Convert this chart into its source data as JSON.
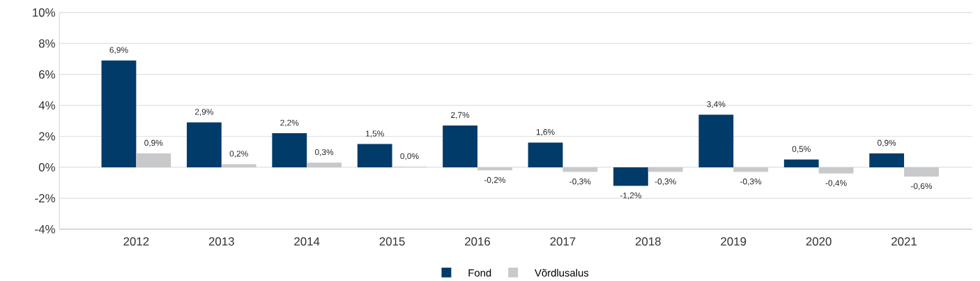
{
  "chart_data": {
    "type": "bar",
    "categories": [
      "2012",
      "2013",
      "2014",
      "2015",
      "2016",
      "2017",
      "2018",
      "2019",
      "2020",
      "2021"
    ],
    "series": [
      {
        "name": "Fond",
        "color": "#013b6a",
        "values": [
          6.9,
          2.9,
          2.2,
          1.5,
          2.7,
          1.6,
          -1.2,
          3.4,
          0.5,
          0.9
        ],
        "value_labels": [
          "6,9%",
          "2,9%",
          "2,2%",
          "1,5%",
          "2,7%",
          "1,6%",
          "-1,2%",
          "3,4%",
          "0,5%",
          "0,9%"
        ]
      },
      {
        "name": "Võrdlusalus",
        "color": "#c8c9cb",
        "values": [
          0.9,
          0.2,
          0.3,
          0.04,
          -0.2,
          -0.3,
          -0.3,
          -0.3,
          -0.4,
          -0.6
        ],
        "value_labels": [
          "0,9%",
          "0,2%",
          "0,3%",
          "0,0%",
          "-0,2%",
          "-0,3%",
          "-0,3%",
          "-0,3%",
          "-0,4%",
          "-0,6%"
        ]
      }
    ],
    "ylim": [
      -4,
      10
    ],
    "yticks": [
      {
        "value": -4,
        "label": "-4%"
      },
      {
        "value": -2,
        "label": "-2%"
      },
      {
        "value": 0,
        "label": "0%"
      },
      {
        "value": 2,
        "label": "2%"
      },
      {
        "value": 4,
        "label": "4%"
      },
      {
        "value": 6,
        "label": "6%"
      },
      {
        "value": 8,
        "label": "8%"
      },
      {
        "value": 10,
        "label": "10%"
      }
    ],
    "grid": "y",
    "legend": "bottom"
  }
}
